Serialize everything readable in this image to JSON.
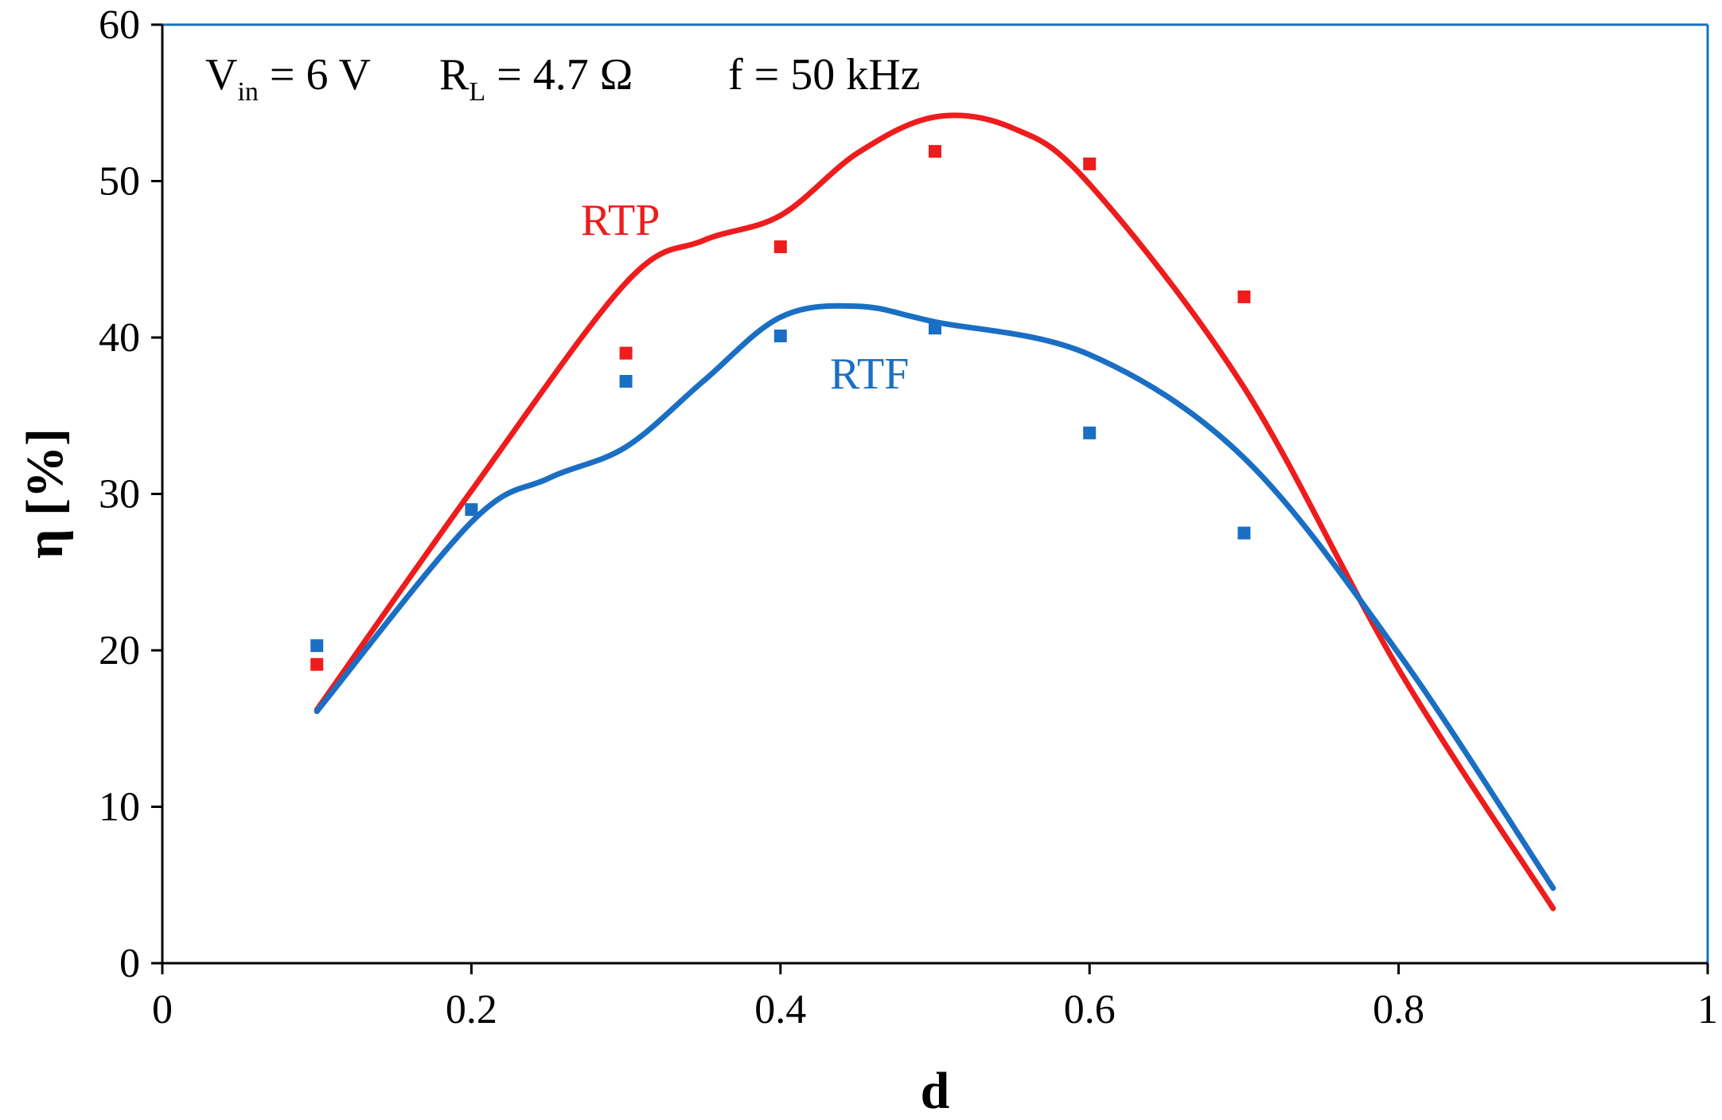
{
  "chart_data": {
    "type": "scatter",
    "title": "",
    "xlabel": "d",
    "ylabel": "η [%]",
    "xlim": [
      0,
      1
    ],
    "ylim": [
      0,
      60
    ],
    "xticks": [
      0,
      0.2,
      0.4,
      0.6,
      0.8,
      1
    ],
    "xtick_labels": [
      "0",
      "0.2",
      "0.4",
      "0.6",
      "0.8",
      "1"
    ],
    "yticks": [
      0,
      10,
      20,
      30,
      40,
      50,
      60
    ],
    "ytick_labels": [
      "0",
      "10",
      "20",
      "30",
      "40",
      "50",
      "60"
    ],
    "grid": false,
    "annotations": {
      "vin_main": "V",
      "vin_sub": "in",
      "vin_rest": " = 6 V",
      "rl_main": "R",
      "rl_sub": "L",
      "rl_rest": " = 4.7 Ω",
      "freq": "f = 50 kHz"
    },
    "series": [
      {
        "name": "RTP",
        "color": "#ee1c1c",
        "points": {
          "x": [
            0.1,
            0.3,
            0.4,
            0.5,
            0.6,
            0.7
          ],
          "y": [
            19.1,
            39.0,
            45.8,
            51.9,
            51.1,
            42.6
          ]
        },
        "trend": {
          "x": [
            0.1,
            0.2,
            0.3,
            0.35,
            0.4,
            0.45,
            0.5,
            0.55,
            0.6,
            0.7,
            0.8,
            0.9
          ],
          "y": [
            16.2,
            30.2,
            43.5,
            46.2,
            47.8,
            51.8,
            54.1,
            53.4,
            49.8,
            36.8,
            18.8,
            3.5
          ]
        }
      },
      {
        "name": "RTF",
        "color": "#1a6fc4",
        "points": {
          "x": [
            0.1,
            0.2,
            0.3,
            0.4,
            0.5,
            0.6,
            0.7
          ],
          "y": [
            20.3,
            29.0,
            37.2,
            40.1,
            40.6,
            33.9,
            27.5
          ]
        },
        "trend": {
          "x": [
            0.1,
            0.2,
            0.25,
            0.3,
            0.35,
            0.4,
            0.45,
            0.5,
            0.6,
            0.7,
            0.8,
            0.9
          ],
          "y": [
            16.1,
            28.2,
            31.0,
            33.0,
            37.2,
            41.3,
            42.0,
            41.0,
            38.9,
            32.3,
            19.8,
            4.8
          ]
        }
      }
    ]
  }
}
